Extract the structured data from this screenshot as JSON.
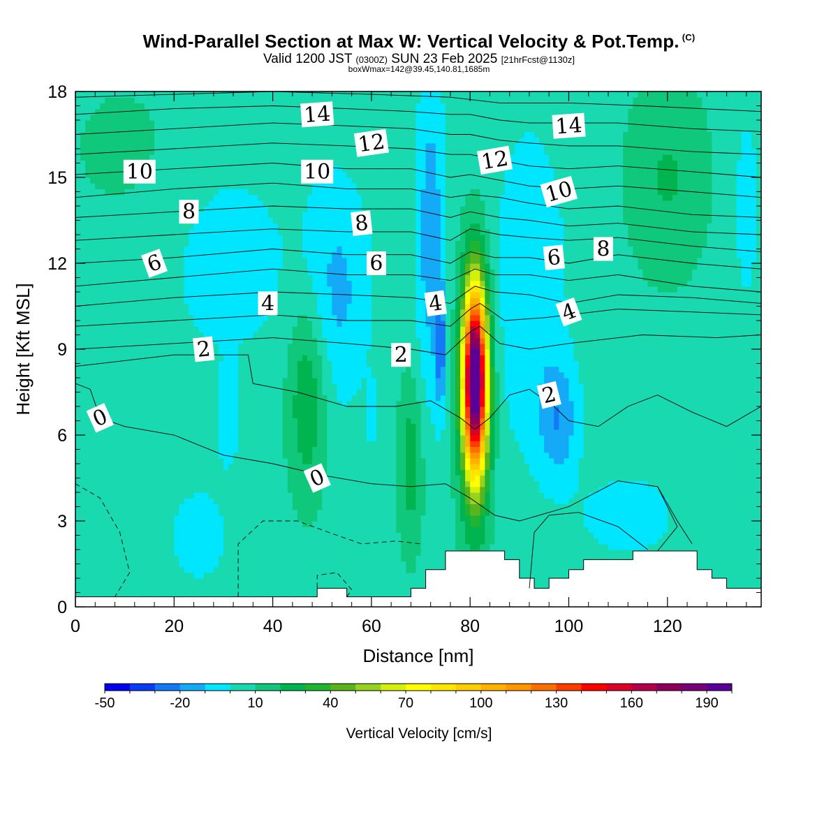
{
  "header": {
    "title": "Wind-Parallel Section at Max W: Vertical Velocity & Pot.Temp.",
    "copyright": "(C)",
    "valid_prefix": "Valid 1200 JST",
    "valid_zulu": "(0300Z)",
    "valid_date": "SUN 23 Feb 2025",
    "forecast": "[21hrFcst@1130z]",
    "boxwmax": "boxWmax=142@39.45,140.81,1685m"
  },
  "colors": {
    "bg_field": "#19d9b0",
    "contour": "#000000",
    "terrain": "#ffffff"
  },
  "chart_data": {
    "type": "heatmap",
    "xlabel": "Distance [nm]",
    "ylabel": "Height [Kft MSL]",
    "xlim": [
      0,
      139
    ],
    "ylim": [
      0,
      18
    ],
    "xticks": [
      0,
      20,
      40,
      60,
      80,
      100,
      120
    ],
    "yticks": [
      0,
      3,
      6,
      9,
      12,
      15,
      18
    ],
    "colorbar": {
      "label": "Vertical Velocity [cm/s]",
      "tick_values": [
        -50,
        -20,
        10,
        40,
        70,
        100,
        130,
        160,
        190
      ],
      "levels": [
        -50,
        -40,
        -30,
        -20,
        -10,
        0,
        10,
        20,
        30,
        40,
        50,
        60,
        70,
        80,
        90,
        100,
        110,
        120,
        130,
        140,
        150,
        160,
        170,
        180,
        190,
        200
      ],
      "colors": [
        "#0000f0",
        "#0a3cf5",
        "#1478f7",
        "#14aaf8",
        "#00e6ff",
        "#19d9b0",
        "#10c87c",
        "#00b450",
        "#20b430",
        "#5ab41e",
        "#96d21e",
        "#d2f00a",
        "#ffff00",
        "#ffe600",
        "#ffcc00",
        "#ffb000",
        "#ff9600",
        "#ff6e00",
        "#ff3c00",
        "#ff0000",
        "#dc0028",
        "#b40046",
        "#8c005a",
        "#780078",
        "#5a0096"
      ]
    },
    "max_w": {
      "value": 142,
      "x": 81,
      "y": 8.2
    },
    "theta_labels": [
      {
        "text": "14",
        "x": 49,
        "y": 17.2
      },
      {
        "text": "14",
        "x": 100,
        "y": 16.8
      },
      {
        "text": "12",
        "x": 60,
        "y": 16.2
      },
      {
        "text": "12",
        "x": 85,
        "y": 15.6
      },
      {
        "text": "10",
        "x": 13,
        "y": 15.2
      },
      {
        "text": "10",
        "x": 49,
        "y": 15.2
      },
      {
        "text": "10",
        "x": 98,
        "y": 14.5
      },
      {
        "text": "8",
        "x": 23,
        "y": 13.8
      },
      {
        "text": "8",
        "x": 58,
        "y": 13.4
      },
      {
        "text": "8",
        "x": 107,
        "y": 12.5
      },
      {
        "text": "6",
        "x": 16,
        "y": 12.0
      },
      {
        "text": "6",
        "x": 61,
        "y": 12.0
      },
      {
        "text": "6",
        "x": 97,
        "y": 12.2
      },
      {
        "text": "4",
        "x": 39,
        "y": 10.6
      },
      {
        "text": "4",
        "x": 73,
        "y": 10.6
      },
      {
        "text": "4",
        "x": 100,
        "y": 10.3
      },
      {
        "text": "2",
        "x": 26,
        "y": 9.0
      },
      {
        "text": "2",
        "x": 66,
        "y": 8.8
      },
      {
        "text": "2",
        "x": 96,
        "y": 7.4
      },
      {
        "text": "0",
        "x": 5,
        "y": 6.6
      },
      {
        "text": "0",
        "x": 49,
        "y": 4.5
      }
    ],
    "theta_contours": [
      {
        "level": 0,
        "pts": [
          [
            0,
            7.8
          ],
          [
            3,
            7.6
          ],
          [
            5,
            6.6
          ],
          [
            10,
            6.3
          ],
          [
            20,
            6.0
          ],
          [
            30,
            5.3
          ],
          [
            40,
            5.0
          ],
          [
            50,
            4.6
          ],
          [
            60,
            4.3
          ],
          [
            68,
            4.2
          ],
          [
            75,
            4.3
          ],
          [
            80,
            3.8
          ],
          [
            85,
            3.2
          ],
          [
            90,
            3.0
          ],
          [
            100,
            3.5
          ],
          [
            110,
            4.4
          ],
          [
            118,
            4.2
          ],
          [
            122,
            3.0
          ],
          [
            125,
            2.2
          ]
        ]
      },
      {
        "level": 2,
        "pts": [
          [
            0,
            8.4
          ],
          [
            20,
            8.8
          ],
          [
            35,
            8.8
          ],
          [
            36,
            7.8
          ],
          [
            45,
            7.5
          ],
          [
            55,
            7.0
          ],
          [
            65,
            7.0
          ],
          [
            72,
            7.2
          ],
          [
            78,
            6.6
          ],
          [
            81,
            6.2
          ],
          [
            84,
            6.6
          ],
          [
            88,
            7.4
          ],
          [
            92,
            7.6
          ],
          [
            97,
            7.0
          ],
          [
            100,
            6.5
          ],
          [
            106,
            6.3
          ],
          [
            112,
            7.0
          ],
          [
            118,
            7.4
          ],
          [
            125,
            6.8
          ],
          [
            132,
            6.3
          ],
          [
            139,
            7.0
          ]
        ]
      },
      {
        "level": 2.5,
        "pts": [
          [
            0,
            9.0
          ],
          [
            20,
            9.2
          ],
          [
            40,
            9.4
          ],
          [
            55,
            9.2
          ],
          [
            68,
            9.0
          ],
          [
            75,
            8.8
          ],
          [
            80,
            9.6
          ],
          [
            82,
            9.8
          ],
          [
            86,
            9.2
          ],
          [
            92,
            9.0
          ],
          [
            100,
            9.2
          ],
          [
            115,
            9.5
          ],
          [
            130,
            9.4
          ],
          [
            139,
            9.5
          ]
        ]
      },
      {
        "level": 3,
        "pts": [
          [
            0,
            9.8
          ],
          [
            20,
            10.0
          ],
          [
            40,
            10.2
          ],
          [
            55,
            10.0
          ],
          [
            68,
            10.0
          ],
          [
            76,
            9.8
          ],
          [
            80,
            10.4
          ],
          [
            82,
            10.6
          ],
          [
            87,
            10.0
          ],
          [
            95,
            10.1
          ],
          [
            110,
            10.4
          ],
          [
            125,
            10.3
          ],
          [
            139,
            10.2
          ]
        ]
      },
      {
        "level": 4,
        "pts": [
          [
            0,
            10.5
          ],
          [
            20,
            10.8
          ],
          [
            40,
            11.0
          ],
          [
            55,
            10.9
          ],
          [
            68,
            10.8
          ],
          [
            76,
            10.6
          ],
          [
            81,
            11.2
          ],
          [
            85,
            11.0
          ],
          [
            92,
            10.9
          ],
          [
            100,
            10.6
          ],
          [
            110,
            10.9
          ],
          [
            125,
            10.8
          ],
          [
            139,
            10.6
          ]
        ]
      },
      {
        "level": 5,
        "pts": [
          [
            0,
            11.2
          ],
          [
            20,
            11.5
          ],
          [
            40,
            11.8
          ],
          [
            55,
            11.6
          ],
          [
            68,
            11.6
          ],
          [
            76,
            11.4
          ],
          [
            81,
            11.8
          ],
          [
            85,
            11.6
          ],
          [
            92,
            11.6
          ],
          [
            100,
            11.4
          ],
          [
            110,
            11.6
          ],
          [
            125,
            11.2
          ],
          [
            139,
            11.0
          ]
        ]
      },
      {
        "level": 6,
        "pts": [
          [
            0,
            12.0
          ],
          [
            20,
            12.2
          ],
          [
            40,
            12.5
          ],
          [
            55,
            12.3
          ],
          [
            68,
            12.3
          ],
          [
            76,
            12.0
          ],
          [
            80,
            12.4
          ],
          [
            85,
            12.2
          ],
          [
            92,
            12.2
          ],
          [
            100,
            12.0
          ],
          [
            110,
            12.3
          ],
          [
            125,
            12.0
          ],
          [
            139,
            11.8
          ]
        ]
      },
      {
        "level": 7,
        "pts": [
          [
            0,
            12.8
          ],
          [
            20,
            13.0
          ],
          [
            40,
            13.2
          ],
          [
            55,
            13.1
          ],
          [
            68,
            13.1
          ],
          [
            76,
            12.8
          ],
          [
            80,
            13.2
          ],
          [
            86,
            13.0
          ],
          [
            92,
            12.9
          ],
          [
            100,
            12.8
          ],
          [
            110,
            12.9
          ],
          [
            125,
            12.6
          ],
          [
            139,
            12.4
          ]
        ]
      },
      {
        "level": 8,
        "pts": [
          [
            0,
            13.6
          ],
          [
            20,
            13.8
          ],
          [
            40,
            14.0
          ],
          [
            55,
            13.9
          ],
          [
            68,
            13.9
          ],
          [
            76,
            13.6
          ],
          [
            80,
            13.8
          ],
          [
            86,
            13.6
          ],
          [
            92,
            13.5
          ],
          [
            100,
            13.3
          ],
          [
            110,
            13.4
          ],
          [
            125,
            13.1
          ],
          [
            139,
            13.0
          ]
        ]
      },
      {
        "level": 9,
        "pts": [
          [
            0,
            14.3
          ],
          [
            20,
            14.6
          ],
          [
            40,
            14.8
          ],
          [
            55,
            14.6
          ],
          [
            68,
            14.6
          ],
          [
            76,
            14.3
          ],
          [
            80,
            14.4
          ],
          [
            86,
            14.3
          ],
          [
            92,
            14.1
          ],
          [
            100,
            13.9
          ],
          [
            110,
            14.0
          ],
          [
            125,
            13.7
          ],
          [
            139,
            13.6
          ]
        ]
      },
      {
        "level": 10,
        "pts": [
          [
            0,
            15.1
          ],
          [
            20,
            15.3
          ],
          [
            40,
            15.5
          ],
          [
            55,
            15.3
          ],
          [
            68,
            15.3
          ],
          [
            76,
            15.0
          ],
          [
            80,
            15.1
          ],
          [
            86,
            14.9
          ],
          [
            92,
            14.7
          ],
          [
            100,
            14.6
          ],
          [
            110,
            14.7
          ],
          [
            125,
            14.5
          ],
          [
            139,
            14.3
          ]
        ]
      },
      {
        "level": 11,
        "pts": [
          [
            0,
            15.8
          ],
          [
            20,
            16.0
          ],
          [
            40,
            16.2
          ],
          [
            55,
            16.1
          ],
          [
            68,
            16.0
          ],
          [
            76,
            15.8
          ],
          [
            80,
            15.8
          ],
          [
            86,
            15.6
          ],
          [
            92,
            15.4
          ],
          [
            100,
            15.3
          ],
          [
            110,
            15.4
          ],
          [
            125,
            15.2
          ],
          [
            139,
            15.0
          ]
        ]
      },
      {
        "level": 12,
        "pts": [
          [
            0,
            16.5
          ],
          [
            20,
            16.7
          ],
          [
            40,
            16.9
          ],
          [
            55,
            16.8
          ],
          [
            68,
            16.7
          ],
          [
            76,
            16.5
          ],
          [
            80,
            16.5
          ],
          [
            86,
            16.3
          ],
          [
            92,
            16.2
          ],
          [
            100,
            16.1
          ],
          [
            110,
            16.1
          ],
          [
            125,
            15.9
          ],
          [
            139,
            15.8
          ]
        ]
      },
      {
        "level": 13,
        "pts": [
          [
            0,
            17.2
          ],
          [
            20,
            17.4
          ],
          [
            40,
            17.5
          ],
          [
            55,
            17.4
          ],
          [
            68,
            17.3
          ],
          [
            76,
            17.2
          ],
          [
            80,
            17.2
          ],
          [
            86,
            17.0
          ],
          [
            92,
            16.9
          ],
          [
            100,
            16.9
          ],
          [
            110,
            16.9
          ],
          [
            125,
            16.7
          ],
          [
            139,
            16.6
          ]
        ]
      },
      {
        "level": 14,
        "pts": [
          [
            0,
            17.8
          ],
          [
            20,
            17.9
          ],
          [
            40,
            18.0
          ],
          [
            60,
            17.9
          ],
          [
            76,
            17.8
          ],
          [
            86,
            17.6
          ],
          [
            100,
            17.6
          ],
          [
            115,
            17.5
          ],
          [
            139,
            17.3
          ]
        ]
      }
    ],
    "terrain_profile": [
      [
        0,
        0.35
      ],
      [
        49,
        0.35
      ],
      [
        49,
        0.65
      ],
      [
        55,
        0.65
      ],
      [
        55,
        0.35
      ],
      [
        68,
        0.35
      ],
      [
        68,
        0.65
      ],
      [
        71,
        0.65
      ],
      [
        71,
        1.3
      ],
      [
        75,
        1.3
      ],
      [
        75,
        1.95
      ],
      [
        87,
        1.95
      ],
      [
        87,
        1.65
      ],
      [
        90,
        1.65
      ],
      [
        90,
        1.0
      ],
      [
        93,
        1.0
      ],
      [
        93,
        0.65
      ],
      [
        96,
        0.65
      ],
      [
        96,
        1.0
      ],
      [
        100,
        1.0
      ],
      [
        100,
        1.3
      ],
      [
        103,
        1.3
      ],
      [
        103,
        1.65
      ],
      [
        113,
        1.65
      ],
      [
        113,
        1.95
      ],
      [
        126,
        1.95
      ],
      [
        126,
        1.3
      ],
      [
        129,
        1.3
      ],
      [
        129,
        1.0
      ],
      [
        132,
        1.0
      ],
      [
        132,
        0.65
      ],
      [
        139,
        0.65
      ]
    ]
  }
}
